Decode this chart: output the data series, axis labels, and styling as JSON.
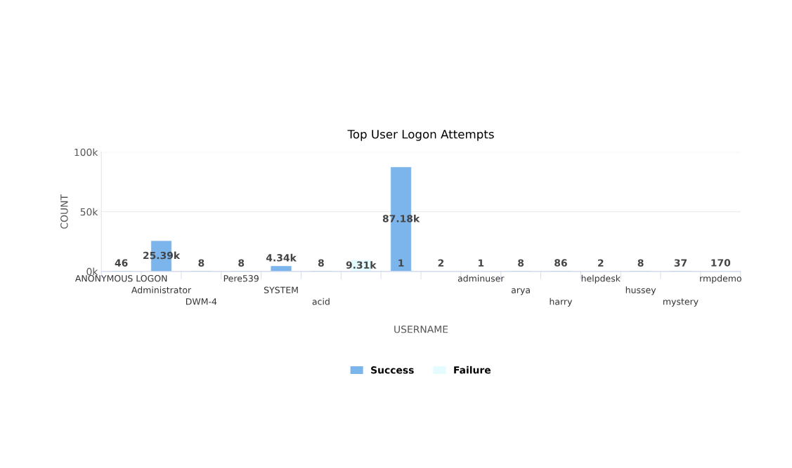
{
  "chart_data": {
    "type": "bar",
    "title": "Top User Logon Attempts",
    "xlabel": "USERNAME",
    "ylabel": "COUNT",
    "categories": [
      "ANONYMOUS LOGON",
      "Administrator",
      "DWM-4",
      "Pere539",
      "SYSTEM",
      "acid",
      null,
      null,
      null,
      "adminuser",
      "arya",
      "harry",
      "helpdesk",
      "hussey",
      "mystery",
      "rmpdemo"
    ],
    "series": [
      {
        "name": "Success",
        "color": "#7cb5ec",
        "values": [
          46,
          25390,
          8,
          8,
          4340,
          8,
          null,
          87180,
          null,
          null,
          8,
          86,
          null,
          8,
          37,
          null
        ],
        "value_labels": [
          "46",
          "25.39k",
          "8",
          "8",
          "4.34k",
          "8",
          null,
          "87.18k",
          null,
          null,
          "8",
          "86",
          null,
          "8",
          "37",
          null
        ]
      },
      {
        "name": "Failure",
        "color": "#e4fbff",
        "values": [
          null,
          null,
          null,
          null,
          null,
          null,
          9310,
          1,
          2,
          1,
          null,
          null,
          2,
          null,
          null,
          170
        ],
        "value_labels": [
          null,
          null,
          null,
          null,
          null,
          null,
          "9.31k",
          "1",
          "2",
          "1",
          null,
          null,
          "2",
          null,
          null,
          "170"
        ]
      }
    ],
    "ylim": [
      0,
      100000
    ],
    "yticks": [
      {
        "value": 0,
        "label": "0k"
      },
      {
        "value": 50000,
        "label": "50k"
      },
      {
        "value": 100000,
        "label": "100k"
      }
    ],
    "grid": "y",
    "legend": "bottom"
  }
}
